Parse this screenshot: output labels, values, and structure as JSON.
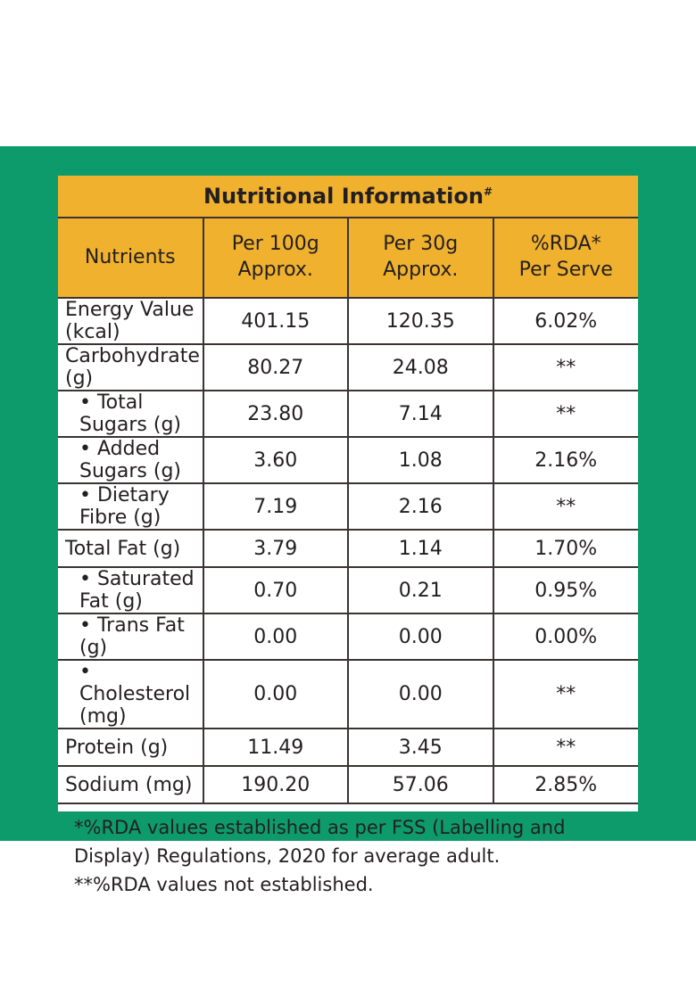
{
  "colors": {
    "background_band": "#0e9b6b",
    "header": "#f0b12e"
  },
  "title": "Nutritional Information",
  "title_mark": "#",
  "headers": [
    "Nutrients",
    "Per 100g\nApprox.",
    "Per 30g\nApprox.",
    "%RDA*\nPer Serve"
  ],
  "rows": [
    {
      "name": "Energy Value (kcal)",
      "sub": false,
      "per100": "401.15",
      "per30": "120.35",
      "rda": "6.02%"
    },
    {
      "name": "Carbohydrate (g)",
      "sub": false,
      "per100": "80.27",
      "per30": "24.08",
      "rda": "**"
    },
    {
      "name": "• Total Sugars (g)",
      "sub": true,
      "per100": "23.80",
      "per30": "7.14",
      "rda": "**"
    },
    {
      "name": "• Added Sugars (g)",
      "sub": true,
      "per100": "3.60",
      "per30": "1.08",
      "rda": "2.16%"
    },
    {
      "name": "• Dietary Fibre (g)",
      "sub": true,
      "per100": "7.19",
      "per30": "2.16",
      "rda": "**"
    },
    {
      "name": "Total Fat (g)",
      "sub": false,
      "per100": "3.79",
      "per30": "1.14",
      "rda": "1.70%"
    },
    {
      "name": "• Saturated Fat (g)",
      "sub": true,
      "per100": "0.70",
      "per30": "0.21",
      "rda": "0.95%"
    },
    {
      "name": "• Trans Fat (g)",
      "sub": true,
      "per100": "0.00",
      "per30": "0.00",
      "rda": "0.00%"
    },
    {
      "name": "• Cholesterol (mg)",
      "sub": true,
      "per100": "0.00",
      "per30": "0.00",
      "rda": "**"
    },
    {
      "name": "Protein (g)",
      "sub": false,
      "per100": "11.49",
      "per30": "3.45",
      "rda": "**"
    },
    {
      "name": "Sodium (mg)",
      "sub": false,
      "per100": "190.20",
      "per30": "57.06",
      "rda": "2.85%"
    }
  ],
  "footnotes": [
    "*%RDA values established as per FSS (Labelling and Display) Regulations, 2020 for average adult.",
    "**%RDA values not established."
  ]
}
